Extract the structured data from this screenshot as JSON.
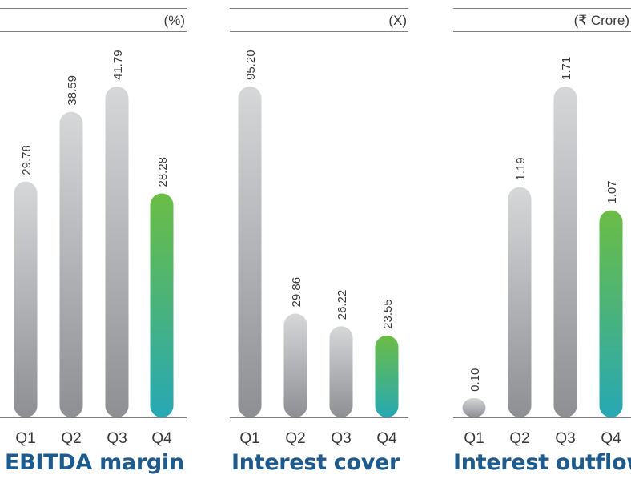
{
  "chart_data": [
    {
      "type": "bar",
      "title": "EBITDA margin",
      "unit": "(%)",
      "categories": [
        "Q1",
        "Q2",
        "Q3",
        "Q4"
      ],
      "values": [
        29.78,
        38.59,
        41.79,
        28.28
      ],
      "value_labels": [
        "29.78",
        "38.59",
        "41.79",
        "28.28"
      ],
      "highlight_index": 3,
      "grid": false
    },
    {
      "type": "bar",
      "title": "Interest cover",
      "unit": "(X)",
      "categories": [
        "Q1",
        "Q2",
        "Q3",
        "Q4"
      ],
      "values": [
        95.2,
        29.86,
        26.22,
        23.55
      ],
      "value_labels": [
        "95.20",
        "29.86",
        "26.22",
        "23.55"
      ],
      "highlight_index": 3,
      "grid": false
    },
    {
      "type": "bar",
      "title": "Interest outflow",
      "unit": "(₹ Crore)",
      "categories": [
        "Q1",
        "Q2",
        "Q3",
        "Q4"
      ],
      "values": [
        0.1,
        1.19,
        1.71,
        1.07
      ],
      "value_labels": [
        "0.10",
        "1.19",
        "1.71",
        "1.07"
      ],
      "highlight_index": 3,
      "grid": false
    }
  ],
  "colors": {
    "bar_gray_top": "#d6d7d9",
    "bar_gray_bottom": "#8e8f93",
    "bar_highlight_top": "#6cbd45",
    "bar_highlight_bottom": "#27a8b4",
    "title": "#1d5b8f",
    "text": "#3a3a3a",
    "rule": "#555555"
  }
}
